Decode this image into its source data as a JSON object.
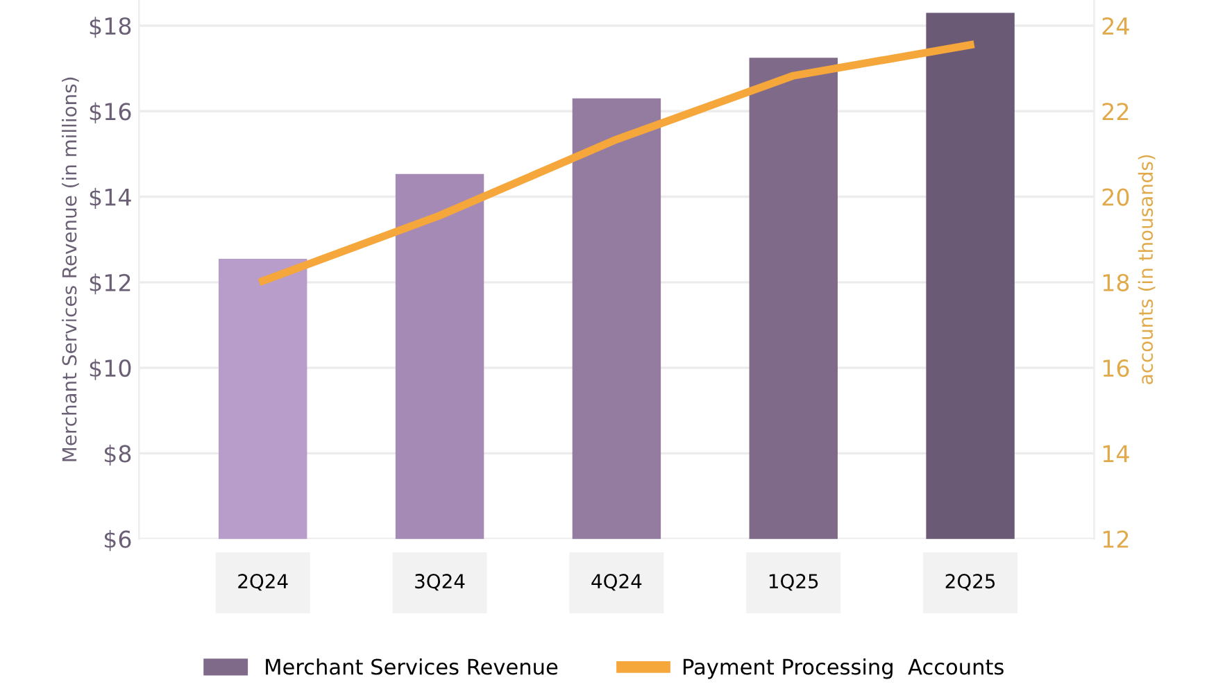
{
  "chart_data": {
    "type": "bar",
    "categories": [
      "2Q24",
      "3Q24",
      "4Q24",
      "1Q25",
      "2Q25"
    ],
    "series": [
      {
        "name": "Merchant Services Revenue",
        "color": "#7f6a89",
        "colors": [
          "#b89cc9",
          "#a58ab5",
          "#937ca0",
          "#7f6a89",
          "#6b5a76"
        ],
        "values": [
          12.55,
          14.53,
          16.3,
          17.25,
          18.3
        ]
      },
      {
        "name": "Payment Processing  Accounts",
        "type": "line",
        "axis": "y2",
        "color": "#f5a73b",
        "values": [
          18.03,
          19.56,
          21.34,
          22.83,
          23.55
        ]
      }
    ],
    "ylabel": "Merchant Services Revenue (in millions)",
    "y2label": "accounts (in thousands)",
    "ylim": [
      6,
      18.6
    ],
    "yticks": [
      {
        "value": 6,
        "label": "$6"
      },
      {
        "value": 8,
        "label": "$8"
      },
      {
        "value": 10,
        "label": "$10"
      },
      {
        "value": 12,
        "label": "$12"
      },
      {
        "value": 14,
        "label": "$14"
      },
      {
        "value": 16,
        "label": "$16"
      },
      {
        "value": 18,
        "label": "$18"
      }
    ],
    "y2lim": [
      12,
      24.6
    ],
    "y2ticks": [
      12,
      14,
      16,
      18,
      20,
      22,
      24
    ],
    "grid": "y",
    "legend": "bottom",
    "marker": "none",
    "line_style": "solid"
  }
}
